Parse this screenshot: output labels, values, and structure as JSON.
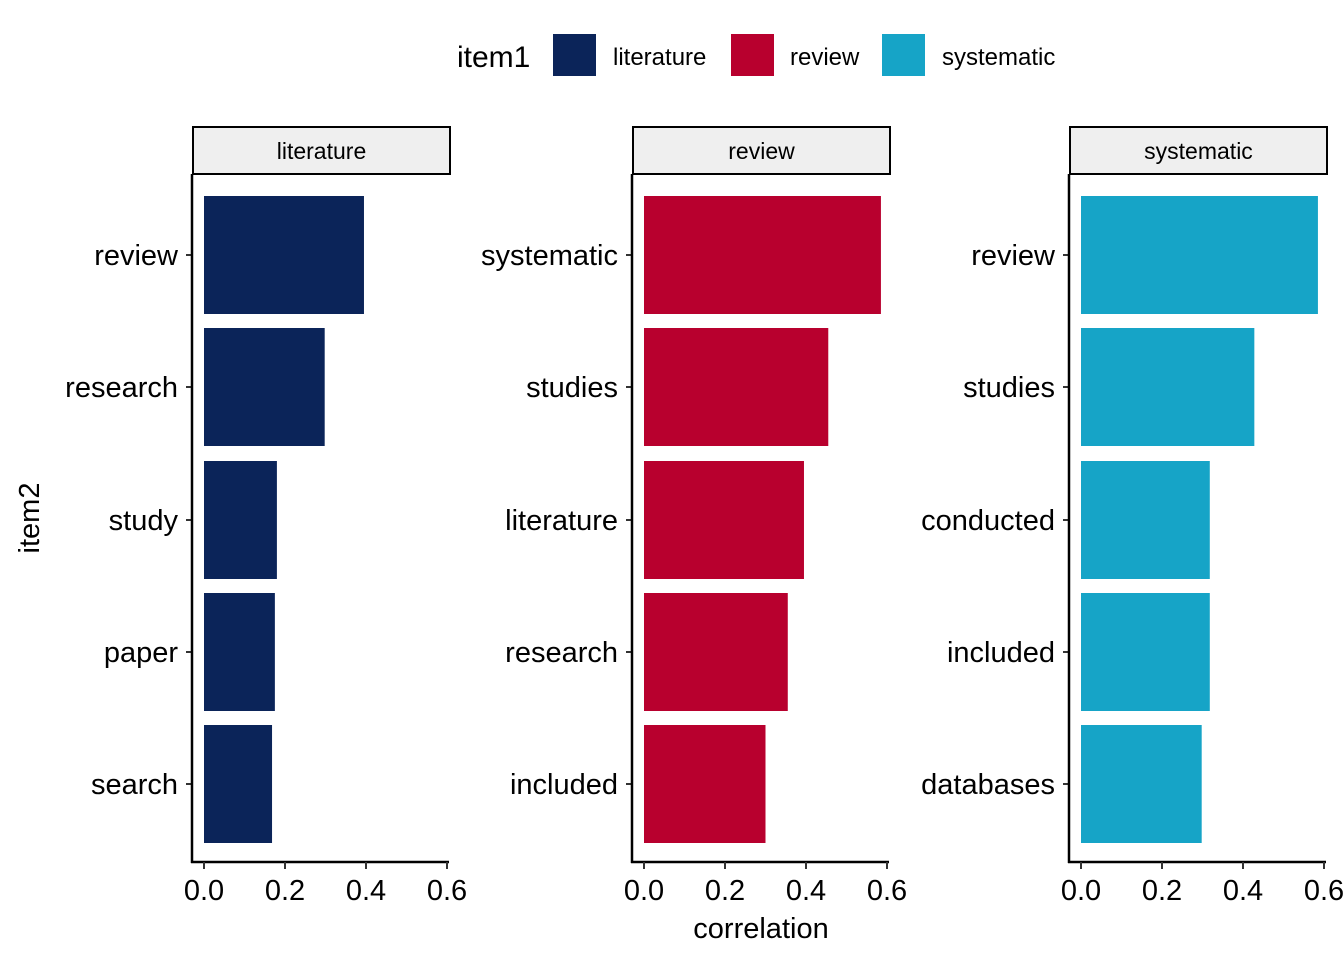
{
  "chart_data": {
    "type": "bar",
    "orientation": "horizontal",
    "legend": {
      "title": "item1",
      "placement": "top",
      "entries": [
        {
          "label": "literature",
          "color": "#0B2459"
        },
        {
          "label": "review",
          "color": "#B8002E"
        },
        {
          "label": "systematic",
          "color": "#16A4C7"
        }
      ]
    },
    "xlabel": "correlation",
    "ylabel": "item2",
    "xlim": [
      0,
      0.6
    ],
    "x_ticks": [
      "0.0",
      "0.2",
      "0.4",
      "0.6"
    ],
    "grid": false,
    "facets": [
      {
        "label": "literature",
        "color": "#0B2459",
        "categories": [
          "review",
          "research",
          "study",
          "paper",
          "search"
        ],
        "values": [
          0.395,
          0.298,
          0.18,
          0.175,
          0.168
        ]
      },
      {
        "label": "review",
        "color": "#B8002E",
        "categories": [
          "systematic",
          "studies",
          "literature",
          "research",
          "included"
        ],
        "values": [
          0.585,
          0.455,
          0.395,
          0.355,
          0.3
        ]
      },
      {
        "label": "systematic",
        "color": "#16A4C7",
        "categories": [
          "review",
          "studies",
          "conducted",
          "included",
          "databases"
        ],
        "values": [
          0.585,
          0.428,
          0.318,
          0.318,
          0.298
        ]
      }
    ]
  }
}
